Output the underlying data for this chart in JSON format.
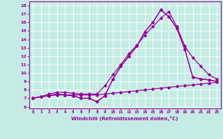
{
  "xlabel": "Windchill (Refroidissement éolien,°C)",
  "xlim": [
    -0.5,
    23.5
  ],
  "ylim": [
    5.8,
    18.5
  ],
  "xticks": [
    0,
    1,
    2,
    3,
    4,
    5,
    6,
    7,
    8,
    9,
    10,
    11,
    12,
    13,
    14,
    15,
    16,
    17,
    18,
    19,
    20,
    21,
    22,
    23
  ],
  "yticks": [
    6,
    7,
    8,
    9,
    10,
    11,
    12,
    13,
    14,
    15,
    16,
    17,
    18
  ],
  "bg_color": "#c5ece4",
  "line_color": "#990099",
  "grid_color": "#ffffff",
  "line1_x": [
    0,
    1,
    2,
    3,
    4,
    5,
    6,
    7,
    8,
    9,
    10,
    11,
    12,
    13,
    14,
    15,
    16,
    17,
    18,
    19,
    20,
    21,
    22,
    23
  ],
  "line1_y": [
    7.0,
    7.2,
    7.3,
    7.4,
    7.4,
    7.4,
    7.4,
    7.4,
    7.4,
    7.5,
    7.6,
    7.7,
    7.8,
    7.9,
    8.0,
    8.1,
    8.2,
    8.3,
    8.4,
    8.5,
    8.6,
    8.7,
    8.8,
    8.9
  ],
  "line2_x": [
    0,
    1,
    2,
    3,
    4,
    5,
    6,
    7,
    8,
    9,
    10,
    11,
    12,
    13,
    14,
    15,
    16,
    17,
    18,
    19,
    20,
    21,
    22,
    23
  ],
  "line2_y": [
    7.0,
    7.2,
    7.3,
    7.5,
    7.4,
    7.3,
    7.0,
    7.0,
    6.6,
    7.3,
    9.3,
    10.8,
    12.0,
    13.2,
    14.9,
    16.0,
    17.5,
    16.7,
    15.3,
    12.8,
    9.5,
    9.3,
    9.2,
    9.0
  ],
  "line3_x": [
    0,
    1,
    2,
    3,
    4,
    5,
    6,
    7,
    8,
    9,
    10,
    11,
    12,
    13,
    14,
    15,
    16,
    17,
    18,
    19,
    20,
    21,
    22,
    23
  ],
  "line3_y": [
    7.0,
    7.2,
    7.3,
    7.5,
    7.4,
    7.3,
    7.0,
    7.0,
    6.6,
    7.3,
    9.3,
    10.8,
    12.0,
    13.2,
    14.9,
    16.0,
    17.5,
    16.7,
    15.3,
    12.8,
    9.5,
    9.3,
    9.2,
    9.0
  ],
  "line4_x": [
    0,
    1,
    2,
    3,
    4,
    5,
    6,
    7,
    8,
    9,
    10,
    11,
    12,
    13,
    14,
    15,
    16,
    17,
    18,
    19,
    20,
    21,
    22,
    23
  ],
  "line4_y": [
    7.0,
    7.2,
    7.5,
    7.7,
    7.7,
    7.6,
    7.5,
    7.5,
    7.5,
    8.5,
    9.8,
    11.0,
    12.3,
    13.3,
    14.5,
    15.5,
    16.5,
    17.3,
    15.5,
    13.2,
    11.8,
    10.8,
    9.8,
    9.3
  ]
}
